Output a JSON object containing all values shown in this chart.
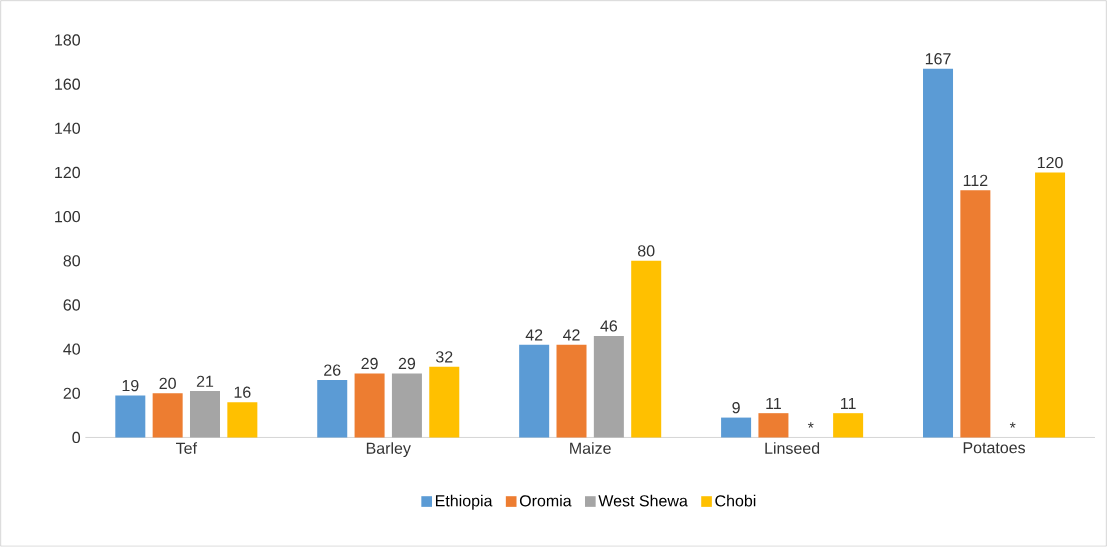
{
  "chart_data": {
    "type": "bar",
    "categories": [
      "Tef",
      "Barley",
      "Maize",
      "Linseed",
      "Potatoes"
    ],
    "series": [
      {
        "name": "Ethiopia",
        "color": "#5b9bd5",
        "values": [
          19,
          26,
          42,
          9,
          167
        ],
        "value_labels": [
          "19",
          "26",
          "42",
          "9",
          "167"
        ]
      },
      {
        "name": "Oromia",
        "color": "#ed7d31",
        "values": [
          20,
          29,
          42,
          11,
          112
        ],
        "value_labels": [
          "20",
          "29",
          "42",
          "11",
          "112"
        ]
      },
      {
        "name": "West Shewa",
        "color": "#a5a5a5",
        "values": [
          21,
          29,
          46,
          null,
          null
        ],
        "value_labels": [
          "21",
          "29",
          "46",
          "*",
          "*"
        ]
      },
      {
        "name": "Chobi",
        "color": "#ffc000",
        "values": [
          16,
          32,
          80,
          11,
          120
        ],
        "value_labels": [
          "16",
          "32",
          "80",
          "11",
          "120"
        ]
      }
    ],
    "ylim": [
      0,
      180
    ],
    "yticks": [
      0,
      20,
      40,
      60,
      80,
      100,
      120,
      140,
      160,
      180
    ],
    "legend": "bottom"
  }
}
